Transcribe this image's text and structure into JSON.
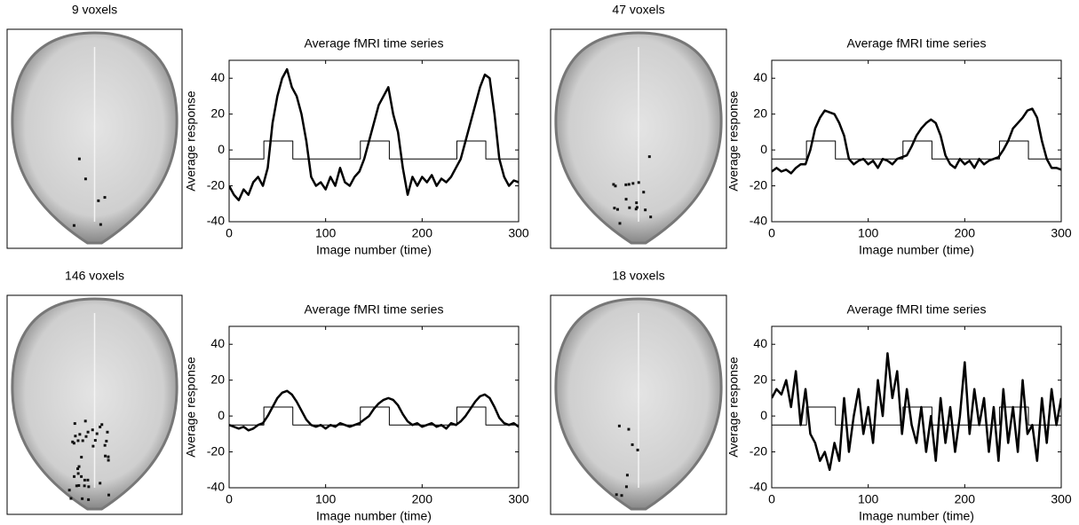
{
  "images": [
    {
      "title": "9 voxels"
    },
    {
      "title": "47 voxels"
    },
    {
      "title": "146 voxels"
    },
    {
      "title": "18 voxels"
    }
  ],
  "chart_data": [
    {
      "type": "line",
      "title": "Average fMRI time series",
      "xlabel": "Image number (time)",
      "ylabel": "Average response",
      "xlim": [
        0,
        300
      ],
      "ylim": [
        -40,
        50
      ],
      "xticks": [
        0,
        100,
        200,
        300
      ],
      "yticks": [
        -40,
        -20,
        0,
        20,
        40
      ],
      "series": [
        {
          "color": "#000000",
          "x": [
            0,
            5,
            10,
            15,
            20,
            25,
            30,
            35,
            40,
            45,
            50,
            55,
            60,
            65,
            70,
            75,
            80,
            85,
            90,
            95,
            100,
            105,
            110,
            115,
            120,
            125,
            130,
            135,
            140,
            145,
            150,
            155,
            160,
            165,
            170,
            175,
            180,
            185,
            190,
            195,
            200,
            205,
            210,
            215,
            220,
            225,
            230,
            235,
            240,
            245,
            250,
            255,
            260,
            265,
            270,
            275,
            280,
            285,
            290,
            295,
            300
          ],
          "values": [
            -20,
            -25,
            -28,
            -22,
            -25,
            -18,
            -15,
            -20,
            -10,
            15,
            30,
            40,
            45,
            35,
            30,
            20,
            5,
            -15,
            -20,
            -18,
            -22,
            -15,
            -20,
            -10,
            -18,
            -20,
            -15,
            -12,
            -5,
            5,
            15,
            25,
            30,
            35,
            20,
            10,
            -10,
            -25,
            -15,
            -20,
            -15,
            -18,
            -14,
            -20,
            -16,
            -18,
            -15,
            -10,
            -5,
            5,
            15,
            25,
            35,
            42,
            40,
            20,
            -5,
            -15,
            -20,
            -17,
            -18
          ]
        },
        {
          "color": "#000000",
          "x": [
            0,
            36,
            36,
            66,
            66,
            136,
            136,
            166,
            166,
            236,
            236,
            266,
            266,
            300
          ],
          "values": [
            -5,
            -5,
            5,
            5,
            -5,
            -5,
            5,
            5,
            -5,
            -5,
            5,
            5,
            -5,
            -5
          ]
        }
      ]
    },
    {
      "type": "line",
      "title": "Average fMRI time series",
      "xlabel": "Image number (time)",
      "ylabel": "Average response",
      "xlim": [
        0,
        300
      ],
      "ylim": [
        -40,
        50
      ],
      "xticks": [
        0,
        100,
        200,
        300
      ],
      "yticks": [
        -40,
        -20,
        0,
        20,
        40
      ],
      "series": [
        {
          "color": "#000000",
          "x": [
            0,
            5,
            10,
            15,
            20,
            25,
            30,
            35,
            40,
            45,
            50,
            55,
            60,
            65,
            70,
            75,
            80,
            85,
            90,
            95,
            100,
            105,
            110,
            115,
            120,
            125,
            130,
            135,
            140,
            145,
            150,
            155,
            160,
            165,
            170,
            175,
            180,
            185,
            190,
            195,
            200,
            205,
            210,
            215,
            220,
            225,
            230,
            235,
            240,
            245,
            250,
            255,
            260,
            265,
            270,
            275,
            280,
            285,
            290,
            295,
            300
          ],
          "values": [
            -12,
            -10,
            -12,
            -11,
            -13,
            -10,
            -8,
            -8,
            0,
            12,
            18,
            22,
            21,
            20,
            15,
            8,
            -5,
            -8,
            -6,
            -5,
            -8,
            -6,
            -10,
            -5,
            -6,
            -8,
            -5,
            -4,
            -3,
            2,
            8,
            12,
            15,
            17,
            15,
            8,
            -3,
            -8,
            -10,
            -5,
            -8,
            -6,
            -10,
            -5,
            -8,
            -6,
            -5,
            -4,
            0,
            5,
            12,
            15,
            18,
            22,
            23,
            18,
            5,
            -5,
            -10,
            -10,
            -11
          ]
        },
        {
          "color": "#000000",
          "x": [
            0,
            36,
            36,
            66,
            66,
            136,
            136,
            166,
            166,
            236,
            236,
            266,
            266,
            300
          ],
          "values": [
            -5,
            -5,
            5,
            5,
            -5,
            -5,
            5,
            5,
            -5,
            -5,
            5,
            5,
            -5,
            -5
          ]
        }
      ]
    },
    {
      "type": "line",
      "title": "Average fMRI time series",
      "xlabel": "Image number (time)",
      "ylabel": "Average response",
      "xlim": [
        0,
        300
      ],
      "ylim": [
        -40,
        50
      ],
      "xticks": [
        0,
        100,
        200,
        300
      ],
      "yticks": [
        -40,
        -20,
        0,
        20,
        40
      ],
      "series": [
        {
          "color": "#000000",
          "x": [
            0,
            5,
            10,
            15,
            20,
            25,
            30,
            35,
            40,
            45,
            50,
            55,
            60,
            65,
            70,
            75,
            80,
            85,
            90,
            95,
            100,
            105,
            110,
            115,
            120,
            125,
            130,
            135,
            140,
            145,
            150,
            155,
            160,
            165,
            170,
            175,
            180,
            185,
            190,
            195,
            200,
            205,
            210,
            215,
            220,
            225,
            230,
            235,
            240,
            245,
            250,
            255,
            260,
            265,
            270,
            275,
            280,
            285,
            290,
            295,
            300
          ],
          "values": [
            -5,
            -6,
            -7,
            -6,
            -8,
            -7,
            -5,
            -4,
            0,
            5,
            10,
            13,
            14,
            12,
            8,
            3,
            -2,
            -5,
            -6,
            -5,
            -7,
            -5,
            -6,
            -4,
            -5,
            -6,
            -5,
            -4,
            -2,
            0,
            4,
            7,
            9,
            10,
            9,
            6,
            1,
            -3,
            -5,
            -4,
            -6,
            -5,
            -4,
            -6,
            -5,
            -7,
            -4,
            -5,
            -3,
            0,
            4,
            8,
            11,
            12,
            10,
            5,
            -1,
            -4,
            -5,
            -4,
            -6
          ]
        },
        {
          "color": "#000000",
          "x": [
            0,
            36,
            36,
            66,
            66,
            136,
            136,
            166,
            166,
            236,
            236,
            266,
            266,
            300
          ],
          "values": [
            -5,
            -5,
            5,
            5,
            -5,
            -5,
            5,
            5,
            -5,
            -5,
            5,
            5,
            -5,
            -5
          ]
        }
      ]
    },
    {
      "type": "line",
      "title": "Average fMRI time series",
      "xlabel": "Image number (time)",
      "ylabel": "Average response",
      "xlim": [
        0,
        300
      ],
      "ylim": [
        -40,
        50
      ],
      "xticks": [
        0,
        100,
        200,
        300
      ],
      "yticks": [
        -40,
        -20,
        0,
        20,
        40
      ],
      "series": [
        {
          "color": "#000000",
          "x": [
            0,
            5,
            10,
            15,
            20,
            25,
            30,
            35,
            40,
            45,
            50,
            55,
            60,
            65,
            70,
            75,
            80,
            85,
            90,
            95,
            100,
            105,
            110,
            115,
            120,
            125,
            130,
            135,
            140,
            145,
            150,
            155,
            160,
            165,
            170,
            175,
            180,
            185,
            190,
            195,
            200,
            205,
            210,
            215,
            220,
            225,
            230,
            235,
            240,
            245,
            250,
            255,
            260,
            265,
            270,
            275,
            280,
            285,
            290,
            295,
            300
          ],
          "values": [
            10,
            15,
            12,
            20,
            5,
            25,
            -5,
            15,
            -10,
            -15,
            -25,
            -20,
            -30,
            -15,
            -25,
            10,
            -20,
            0,
            15,
            -10,
            5,
            -15,
            20,
            0,
            35,
            10,
            25,
            -10,
            15,
            -5,
            -15,
            5,
            -20,
            0,
            -25,
            10,
            -15,
            5,
            -20,
            0,
            30,
            -10,
            15,
            -5,
            10,
            -20,
            5,
            -25,
            15,
            -15,
            5,
            -20,
            20,
            -10,
            -5,
            -25,
            10,
            -15,
            15,
            -5,
            10
          ]
        },
        {
          "color": "#000000",
          "x": [
            0,
            36,
            36,
            66,
            66,
            136,
            136,
            166,
            166,
            236,
            236,
            266,
            266,
            300
          ],
          "values": [
            -5,
            -5,
            5,
            5,
            -5,
            -5,
            5,
            5,
            -5,
            -5,
            5,
            5,
            -5,
            -5
          ]
        }
      ]
    }
  ]
}
